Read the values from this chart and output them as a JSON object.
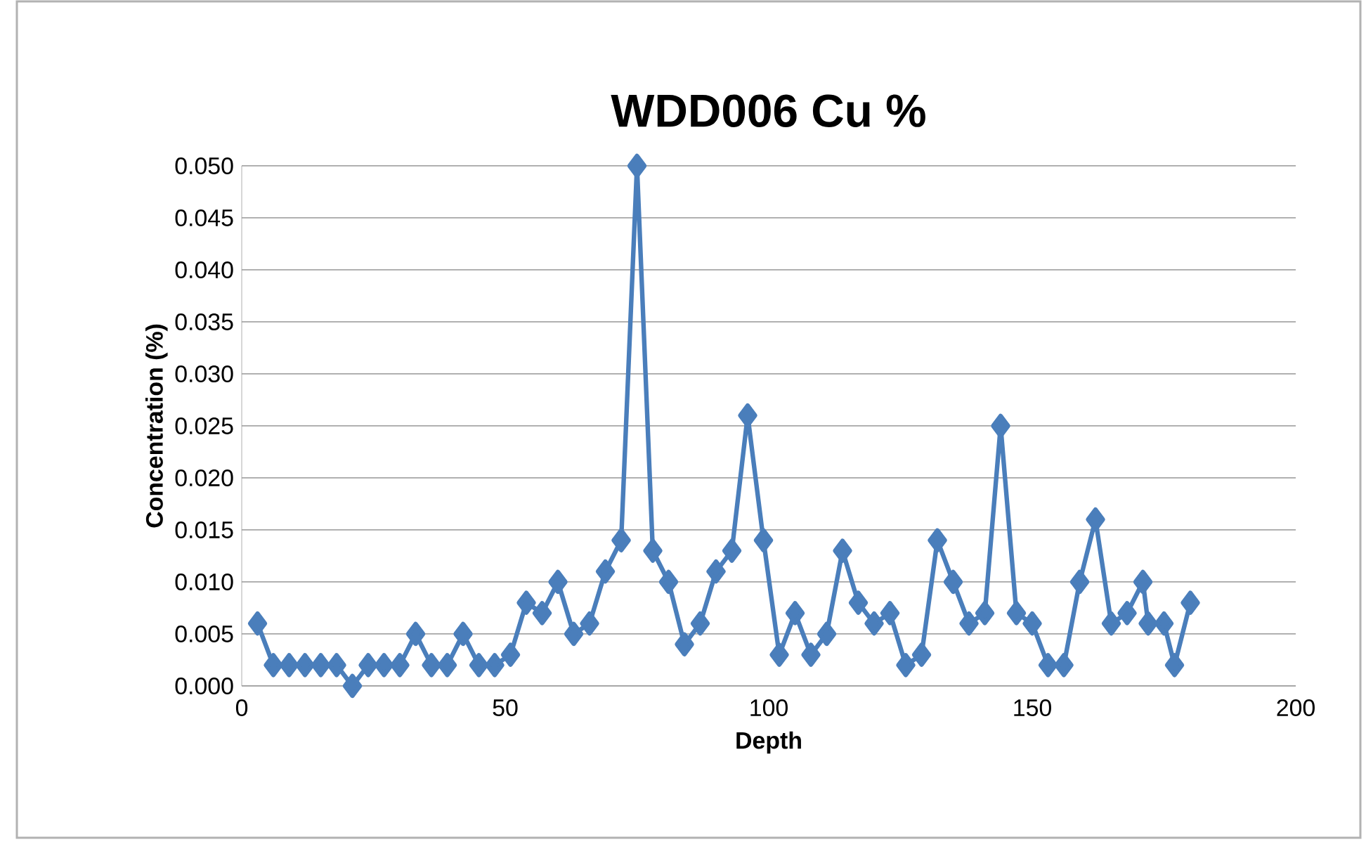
{
  "chart_data": {
    "type": "line",
    "title": "WDD006   Cu %",
    "xlabel": "Depth",
    "ylabel": "Concentration (%)",
    "x": [
      3,
      6,
      9,
      12,
      15,
      18,
      21,
      24,
      27,
      30,
      33,
      36,
      39,
      42,
      45,
      48,
      51,
      54,
      57,
      60,
      63,
      66,
      69,
      72,
      75,
      78,
      81,
      84,
      87,
      90,
      93,
      96,
      99,
      102,
      105,
      108,
      111,
      114,
      117,
      120,
      123,
      126,
      129,
      132,
      135,
      138,
      141,
      144,
      147,
      150,
      153,
      156,
      159,
      162,
      165,
      168,
      171,
      172,
      175,
      177,
      180
    ],
    "series": [
      {
        "color": "#4a7ebb",
        "values": [
          0.006,
          0.002,
          0.002,
          0.002,
          0.002,
          0.002,
          0.0,
          0.002,
          0.002,
          0.002,
          0.005,
          0.002,
          0.002,
          0.005,
          0.002,
          0.002,
          0.003,
          0.008,
          0.007,
          0.01,
          0.005,
          0.006,
          0.011,
          0.014,
          0.05,
          0.013,
          0.01,
          0.004,
          0.006,
          0.011,
          0.013,
          0.026,
          0.014,
          0.003,
          0.007,
          0.003,
          0.005,
          0.013,
          0.008,
          0.006,
          0.007,
          0.002,
          0.003,
          0.014,
          0.01,
          0.006,
          0.007,
          0.025,
          0.007,
          0.006,
          0.002,
          0.002,
          0.01,
          0.016,
          0.006,
          0.007,
          0.01,
          0.006,
          0.006,
          0.002,
          0.008
        ]
      }
    ],
    "xlim": [
      0,
      200
    ],
    "xticks": [
      0,
      50,
      100,
      150,
      200
    ],
    "ylim": [
      0,
      0.05
    ],
    "yticks": [
      {
        "value": 0,
        "label": "0.000"
      },
      {
        "value": 0.005,
        "label": "0.005"
      },
      {
        "value": 0.01,
        "label": "0.010"
      },
      {
        "value": 0.015,
        "label": "0.015"
      },
      {
        "value": 0.02,
        "label": "0.020"
      },
      {
        "value": 0.025,
        "label": "0.025"
      },
      {
        "value": 0.03,
        "label": "0.030"
      },
      {
        "value": 0.035,
        "label": "0.035"
      },
      {
        "value": 0.04,
        "label": "0.040"
      },
      {
        "value": 0.045,
        "label": "0.045"
      },
      {
        "value": 0.05,
        "label": "0.050"
      }
    ],
    "grid": "y",
    "marker": "diamond",
    "line_style": "solid"
  }
}
